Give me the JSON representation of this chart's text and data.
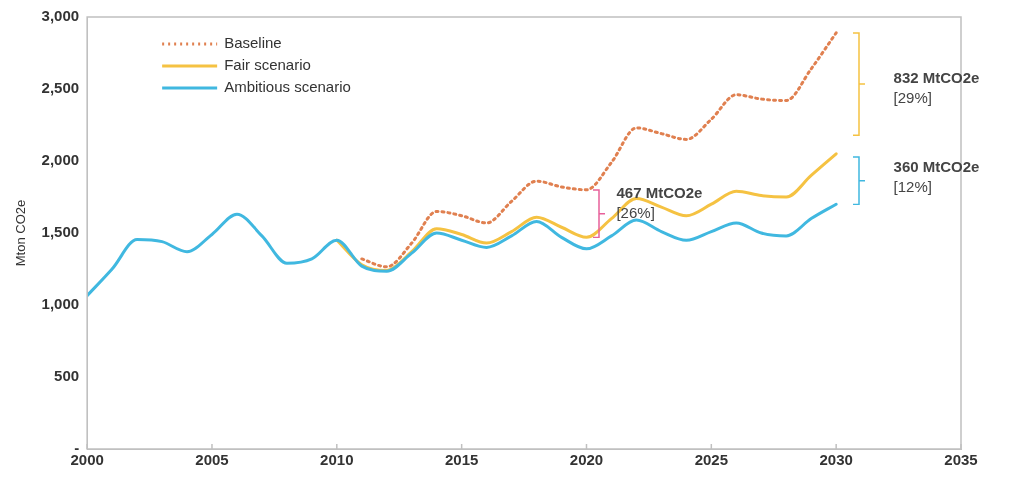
{
  "chart_data": {
    "type": "line",
    "ylabel": "Mton CO2e",
    "xlim": [
      2000,
      2035
    ],
    "xticks": [
      2000,
      2005,
      2010,
      2015,
      2020,
      2025,
      2030,
      2035
    ],
    "ylim": [
      0,
      3000
    ],
    "yticks": [
      {
        "value": 0,
        "label": "-"
      },
      {
        "value": 500,
        "label": "500"
      },
      {
        "value": 1000,
        "label": "1,000"
      },
      {
        "value": 1500,
        "label": "1,500"
      },
      {
        "value": 2000,
        "label": "2,000"
      },
      {
        "value": 2500,
        "label": "2,500"
      },
      {
        "value": 3000,
        "label": "3,000"
      }
    ],
    "grid": false,
    "legend": "top left",
    "marker": "none",
    "x": [
      2000,
      2001,
      2002,
      2003,
      2004,
      2005,
      2006,
      2007,
      2008,
      2009,
      2010,
      2011,
      2012,
      2013,
      2014,
      2015,
      2016,
      2017,
      2018,
      2019,
      2020,
      2021,
      2022,
      2023,
      2024,
      2025,
      2026,
      2027,
      2028,
      2029,
      2030
    ],
    "series": [
      {
        "name": "Baseline",
        "color": "#e08050",
        "line_style": "dotted",
        "values": [
          null,
          null,
          null,
          null,
          null,
          null,
          null,
          null,
          null,
          null,
          null,
          1320,
          1265,
          1430,
          1650,
          1620,
          1570,
          1720,
          1860,
          1820,
          1800,
          1990,
          2230,
          2190,
          2150,
          2290,
          2460,
          2430,
          2420,
          2640,
          2890
        ]
      },
      {
        "name": "Fair scenario",
        "color": "#f5c242",
        "line_style": "solid",
        "values": [
          null,
          null,
          null,
          null,
          null,
          null,
          null,
          null,
          null,
          null,
          1450,
          1280,
          1240,
          1370,
          1530,
          1490,
          1430,
          1510,
          1610,
          1540,
          1470,
          1600,
          1740,
          1680,
          1620,
          1700,
          1790,
          1760,
          1750,
          1900,
          2050
        ]
      },
      {
        "name": "Ambitious scenario",
        "color": "#40b8e0",
        "line_style": "solid",
        "values": [
          1065,
          1250,
          1455,
          1440,
          1370,
          1490,
          1630,
          1480,
          1290,
          1320,
          1450,
          1270,
          1235,
          1360,
          1500,
          1450,
          1400,
          1480,
          1580,
          1470,
          1390,
          1480,
          1590,
          1510,
          1450,
          1510,
          1570,
          1500,
          1480,
          1600,
          1700
        ]
      }
    ],
    "annotations": [
      "467 MtCO2e\n[26%]",
      "832 MtCO2e\n[29%]",
      "360 MtCO2e\n[12%]"
    ]
  }
}
